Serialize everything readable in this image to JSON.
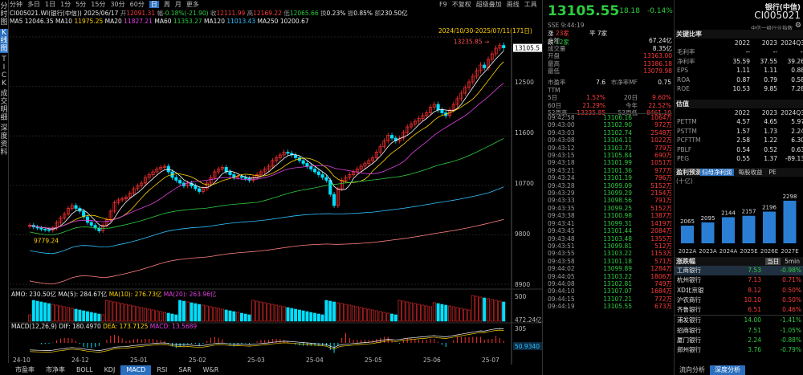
{
  "left_sidebar": [
    "分时图",
    "K线图",
    "TICK",
    "成交明细",
    "深度资料"
  ],
  "period_bar": [
    "分钟",
    "多日",
    "1日",
    "1分",
    "5分",
    "15分",
    "30分",
    "60分",
    "日",
    "周",
    "月",
    "更多"
  ],
  "period_selected": "日",
  "top_actions": [
    "F9",
    "不复权",
    "超级叠加",
    "画线",
    "工具"
  ],
  "info_line": {
    "code": "CI005021.WI(银行(中信))",
    "date": "2025/06/17",
    "open_lbl": "开",
    "open": "12091.31",
    "chg_lbl": "幅",
    "chg": "-0.18%(-21.90)",
    "high_lbl": "高",
    "high": "12169.22",
    "close_lbl": "收",
    "close": "12111.99",
    "low_lbl": "低",
    "low": "12065.66",
    "turn_lbl": "换",
    "turn": "0.23%",
    "amp_lbl": "振",
    "amp": "0.85%",
    "amt_lbl": "额",
    "amt": "230.50亿"
  },
  "ma_line": [
    {
      "label": "MA5",
      "value": "12046.35"
    },
    {
      "label": "MA10",
      "value": "11975.25"
    },
    {
      "label": "MA20",
      "value": "11827.21"
    },
    {
      "label": "MA60",
      "value": "11353.27"
    },
    {
      "label": "MA120",
      "value": "11013.43"
    },
    {
      "label": "MA250",
      "value": "10200.67"
    }
  ],
  "range_label": "2024/10/30-2025/07/11(171日)",
  "chart_data": {
    "type": "candlestick",
    "y_ticks": [
      "13105.5",
      "12500",
      "11600",
      "10700",
      "9800",
      "8900"
    ],
    "x_ticks": [
      "24-10",
      "24-12",
      "25-01",
      "25-02",
      "25-03",
      "25-04",
      "25-05",
      "25-06",
      "25-07"
    ],
    "max_label": "13235.85",
    "min_label": "9779.24",
    "closes": [
      9950,
      9920,
      9900,
      9880,
      9870,
      9860,
      9900,
      10000,
      10080,
      10150,
      10250,
      10300,
      10250,
      10200,
      10100,
      10000,
      9950,
      9900,
      9850,
      9950,
      10050,
      10200,
      10350,
      10400,
      10420,
      10450,
      10520,
      10600,
      10650,
      10700,
      10800,
      10850,
      10900,
      10950,
      10980,
      11000,
      10900,
      10800,
      10750,
      10700,
      10650,
      10700,
      10650,
      10600,
      10550,
      10600,
      10700,
      10800,
      10900,
      10950,
      10980,
      10900,
      10850,
      10800,
      10820,
      10800,
      10780,
      10750,
      10800,
      10850,
      10900,
      10950,
      11000,
      11100,
      11150,
      11200,
      11250,
      11230,
      11200,
      11150,
      11100,
      11050,
      11000,
      10950,
      10900,
      10850,
      10800,
      10750,
      10500,
      10300,
      10600,
      10750,
      10800,
      10850,
      10900,
      10950,
      11000,
      11050,
      11100,
      11150,
      11250,
      11350,
      11450,
      11550,
      11500,
      11450,
      11500,
      11600,
      11700,
      11750,
      11800,
      11850,
      11900,
      11950,
      12050,
      12100,
      12000,
      11950,
      11900,
      12000,
      12100,
      12200,
      12300,
      12400,
      12500,
      12600,
      12700,
      12800,
      12750,
      12900,
      13000,
      13100,
      13150,
      13105.55
    ],
    "vol_panel": {
      "label": "AMO: 230.50亿",
      "ma5": "MA(5): 284.67亿",
      "ma10": "MA(10): 276.73亿",
      "ma20": "MA(20): 263.96亿",
      "axis_top": "500",
      "axis_val": "472.24亿"
    },
    "macd_panel": {
      "label": "MACD(12,26,9)",
      "dif": "DIF: 180.4970",
      "dea": "DEA: 173.7125",
      "macd": "MACD: 13.5689",
      "axis_top": "305",
      "axis_val": "50.9340"
    }
  },
  "bottom_tabs": [
    "市盈率",
    "市净率",
    "BOLL",
    "KDJ",
    "MACD",
    "RSI",
    "SAR",
    "W&R"
  ],
  "bottom_selected": "MACD",
  "quote": {
    "price": "13105.55",
    "change": "-18.18",
    "pct": "-0.14%",
    "time": "SSE 9:44:19",
    "counts": [
      {
        "k": "涨",
        "v": "23家"
      },
      {
        "k": "平",
        "v": "7家"
      },
      {
        "k": "跌",
        "v": "12家"
      }
    ]
  },
  "stats": [
    [
      "金额",
      "67.24亿"
    ],
    [
      "成交量",
      "8.35亿"
    ],
    [
      "开盘",
      "13163.00"
    ],
    [
      "最高",
      "13186.18"
    ],
    [
      "最低",
      "13079.98"
    ]
  ],
  "stats2": [
    [
      "市盈率TTM",
      "7.6",
      "市净率MF",
      "0.75"
    ],
    [
      "5日",
      "1.52%",
      "20日",
      "9.60%"
    ],
    [
      "60日",
      "21.29%",
      "今年",
      "22.52%"
    ],
    [
      "52周高",
      "13235.85",
      "52周低",
      "8461.10"
    ]
  ],
  "ticks": [
    [
      "09:42:58",
      "13106.16",
      "1064万"
    ],
    [
      "09:43:00",
      "13102.90",
      "972万"
    ],
    [
      "09:43:03",
      "13102.74",
      "2548万"
    ],
    [
      "09:43:08",
      "13104.11",
      "1022万"
    ],
    [
      "09:43:12",
      "13103.71",
      "779万"
    ],
    [
      "09:43:15",
      "13105.84",
      "690万"
    ],
    [
      "09:43:18",
      "13101.99",
      "1051万"
    ],
    [
      "09:43:21",
      "13101.36",
      "977万"
    ],
    [
      "09:43:24",
      "13101.19",
      "796万"
    ],
    [
      "09:43:28",
      "13099.09",
      "5152万"
    ],
    [
      "09:43:29",
      "13099.29",
      "2154万"
    ],
    [
      "09:43:33",
      "13098.56",
      "791万"
    ],
    [
      "09:43:35",
      "13099.25",
      "5152万"
    ],
    [
      "09:43:38",
      "13100.98",
      "1387万"
    ],
    [
      "09:43:41",
      "13099.31",
      "1419万"
    ],
    [
      "09:43:45",
      "13101.44",
      "2084万"
    ],
    [
      "09:43:48",
      "13103.48",
      "1355万"
    ],
    [
      "09:43:51",
      "13099.81",
      "512万"
    ],
    [
      "09:43:55",
      "13103.22",
      "1153万"
    ],
    [
      "09:43:58",
      "13101.18",
      "571万"
    ],
    [
      "09:44:02",
      "13099.89",
      "1284万"
    ],
    [
      "09:44:05",
      "13103.22",
      "1806万"
    ],
    [
      "09:44:08",
      "13102.81",
      "749万"
    ],
    [
      "09:44:10",
      "13107.07",
      "1684万"
    ],
    [
      "09:44:15",
      "13107.21",
      "772万"
    ],
    [
      "09:44:19",
      "13105.55",
      "673万"
    ]
  ],
  "side": {
    "title": "银行(中信)",
    "code": "CI005021",
    "link": "中信一级行业指数",
    "key_title": "关键比率",
    "key_cols": [
      "2022",
      "2023",
      "2024Q3"
    ],
    "key_rows": [
      [
        "毛利率",
        "--",
        "--",
        "--"
      ],
      [
        "净利率",
        "35.59",
        "37.55",
        "39.26"
      ],
      [
        "EPS",
        "1.11",
        "1.11",
        "0.88"
      ],
      [
        "ROA",
        "0.87",
        "0.79",
        "0.58"
      ],
      [
        "ROE",
        "10.53",
        "9.85",
        "7.28"
      ]
    ],
    "val_title": "估值",
    "val_cols": [
      "2022",
      "2023",
      "2024Q3"
    ],
    "val_rows": [
      [
        "PETTM",
        "4.57",
        "4.65",
        "5.97"
      ],
      [
        "PSTTM",
        "1.57",
        "1.73",
        "2.24"
      ],
      [
        "PCFTTM",
        "2.58",
        "1.22",
        "6.30"
      ],
      [
        "PBLF",
        "0.54",
        "0.52",
        "0.63"
      ],
      [
        "PEG",
        "0.55",
        "1.37",
        "-89.13"
      ]
    ],
    "fc_title": "盈利预测",
    "fc_unit": "(十亿)",
    "fc_tabs": [
      "归母净利润",
      "每股收益",
      "PE"
    ],
    "fc_bars": [
      {
        "year": "2022A",
        "value": 2065
      },
      {
        "year": "2023A",
        "value": 2095
      },
      {
        "year": "2024A",
        "value": 2144
      },
      {
        "year": "2025E",
        "value": 2157
      },
      {
        "year": "2026E",
        "value": 2196
      },
      {
        "year": "2027E",
        "value": 2298
      }
    ],
    "chg_title": "涨跌幅",
    "chg_tabs": [
      "当日",
      "5min"
    ],
    "chg_rows": [
      [
        "工商银行",
        "7.53",
        "-0.98%"
      ],
      [
        "杭州银行",
        "7.13",
        "0.71%"
      ],
      [
        "XD北京银",
        "8.12",
        "0.50%"
      ],
      [
        "沪农商行",
        "10.10",
        "0.50%"
      ],
      [
        "齐鲁银行",
        "6.51",
        "0.46%"
      ],
      [
        "浦发银行",
        "14.00",
        "-1.41%"
      ],
      [
        "招商银行",
        "7.51",
        "-1.05%"
      ],
      [
        "厦门银行",
        "2.24",
        "-0.88%"
      ],
      [
        "郑州银行",
        "3.76",
        "-0.79%"
      ]
    ],
    "bottom_btns": [
      "流向分析",
      "深度分析"
    ]
  }
}
